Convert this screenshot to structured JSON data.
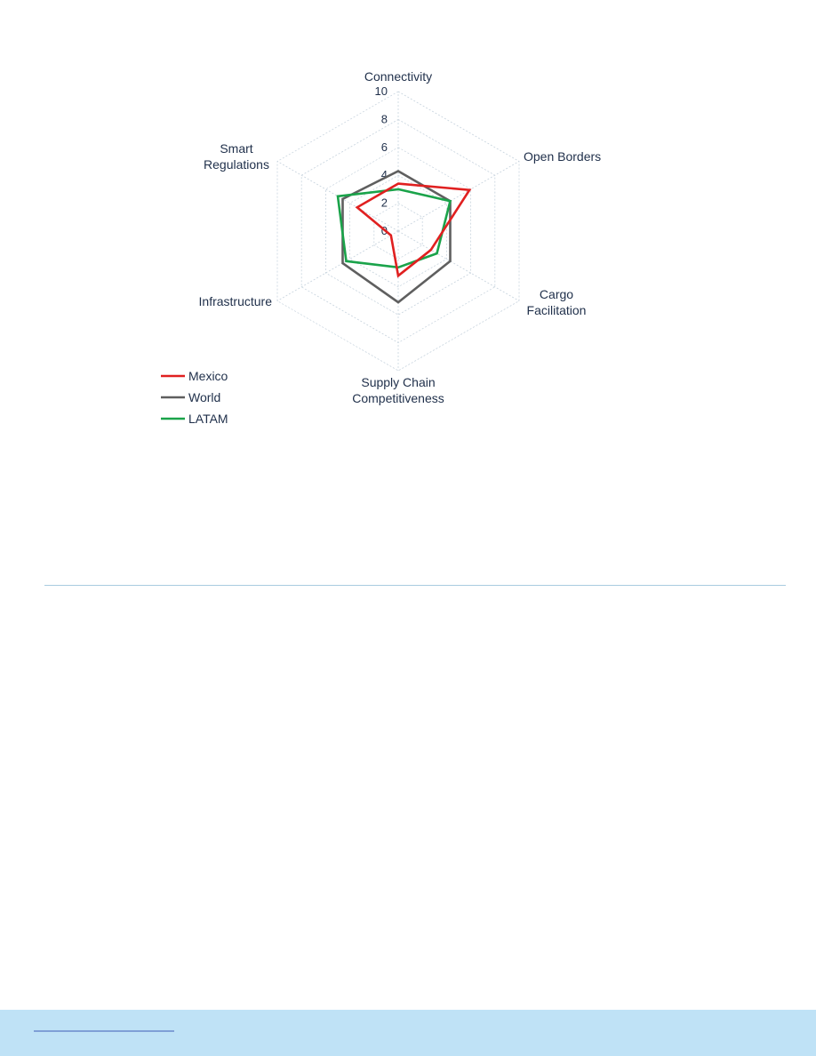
{
  "chart_data": {
    "type": "radar",
    "axes": [
      "Connectivity",
      "Open Borders",
      "Cargo Facilitation",
      "Supply Chain Competitiveness",
      "Infrastructure",
      "Smart Regulations"
    ],
    "axis_label_lines": [
      [
        "Connectivity"
      ],
      [
        "Open Borders"
      ],
      [
        "Cargo",
        "Facilitation"
      ],
      [
        "Supply Chain",
        "Competitiveness"
      ],
      [
        "Infrastructure"
      ],
      [
        "Smart",
        "Regulations"
      ]
    ],
    "rlim": [
      0,
      10
    ],
    "ticks": [
      "0",
      "2",
      "4",
      "6",
      "8",
      "10"
    ],
    "grid": true,
    "legend_position": "bottom-left",
    "series": [
      {
        "name": "Mexico",
        "color": "#e02020",
        "values": [
          3.4,
          5.9,
          2.7,
          3.2,
          0.6,
          3.4
        ]
      },
      {
        "name": "World",
        "color": "#5f5f5f",
        "values": [
          4.3,
          4.3,
          4.3,
          5.1,
          4.6,
          4.6
        ]
      },
      {
        "name": "LATAM",
        "color": "#1aa34a",
        "values": [
          3.0,
          4.3,
          3.2,
          2.6,
          4.3,
          5.0
        ]
      }
    ]
  }
}
